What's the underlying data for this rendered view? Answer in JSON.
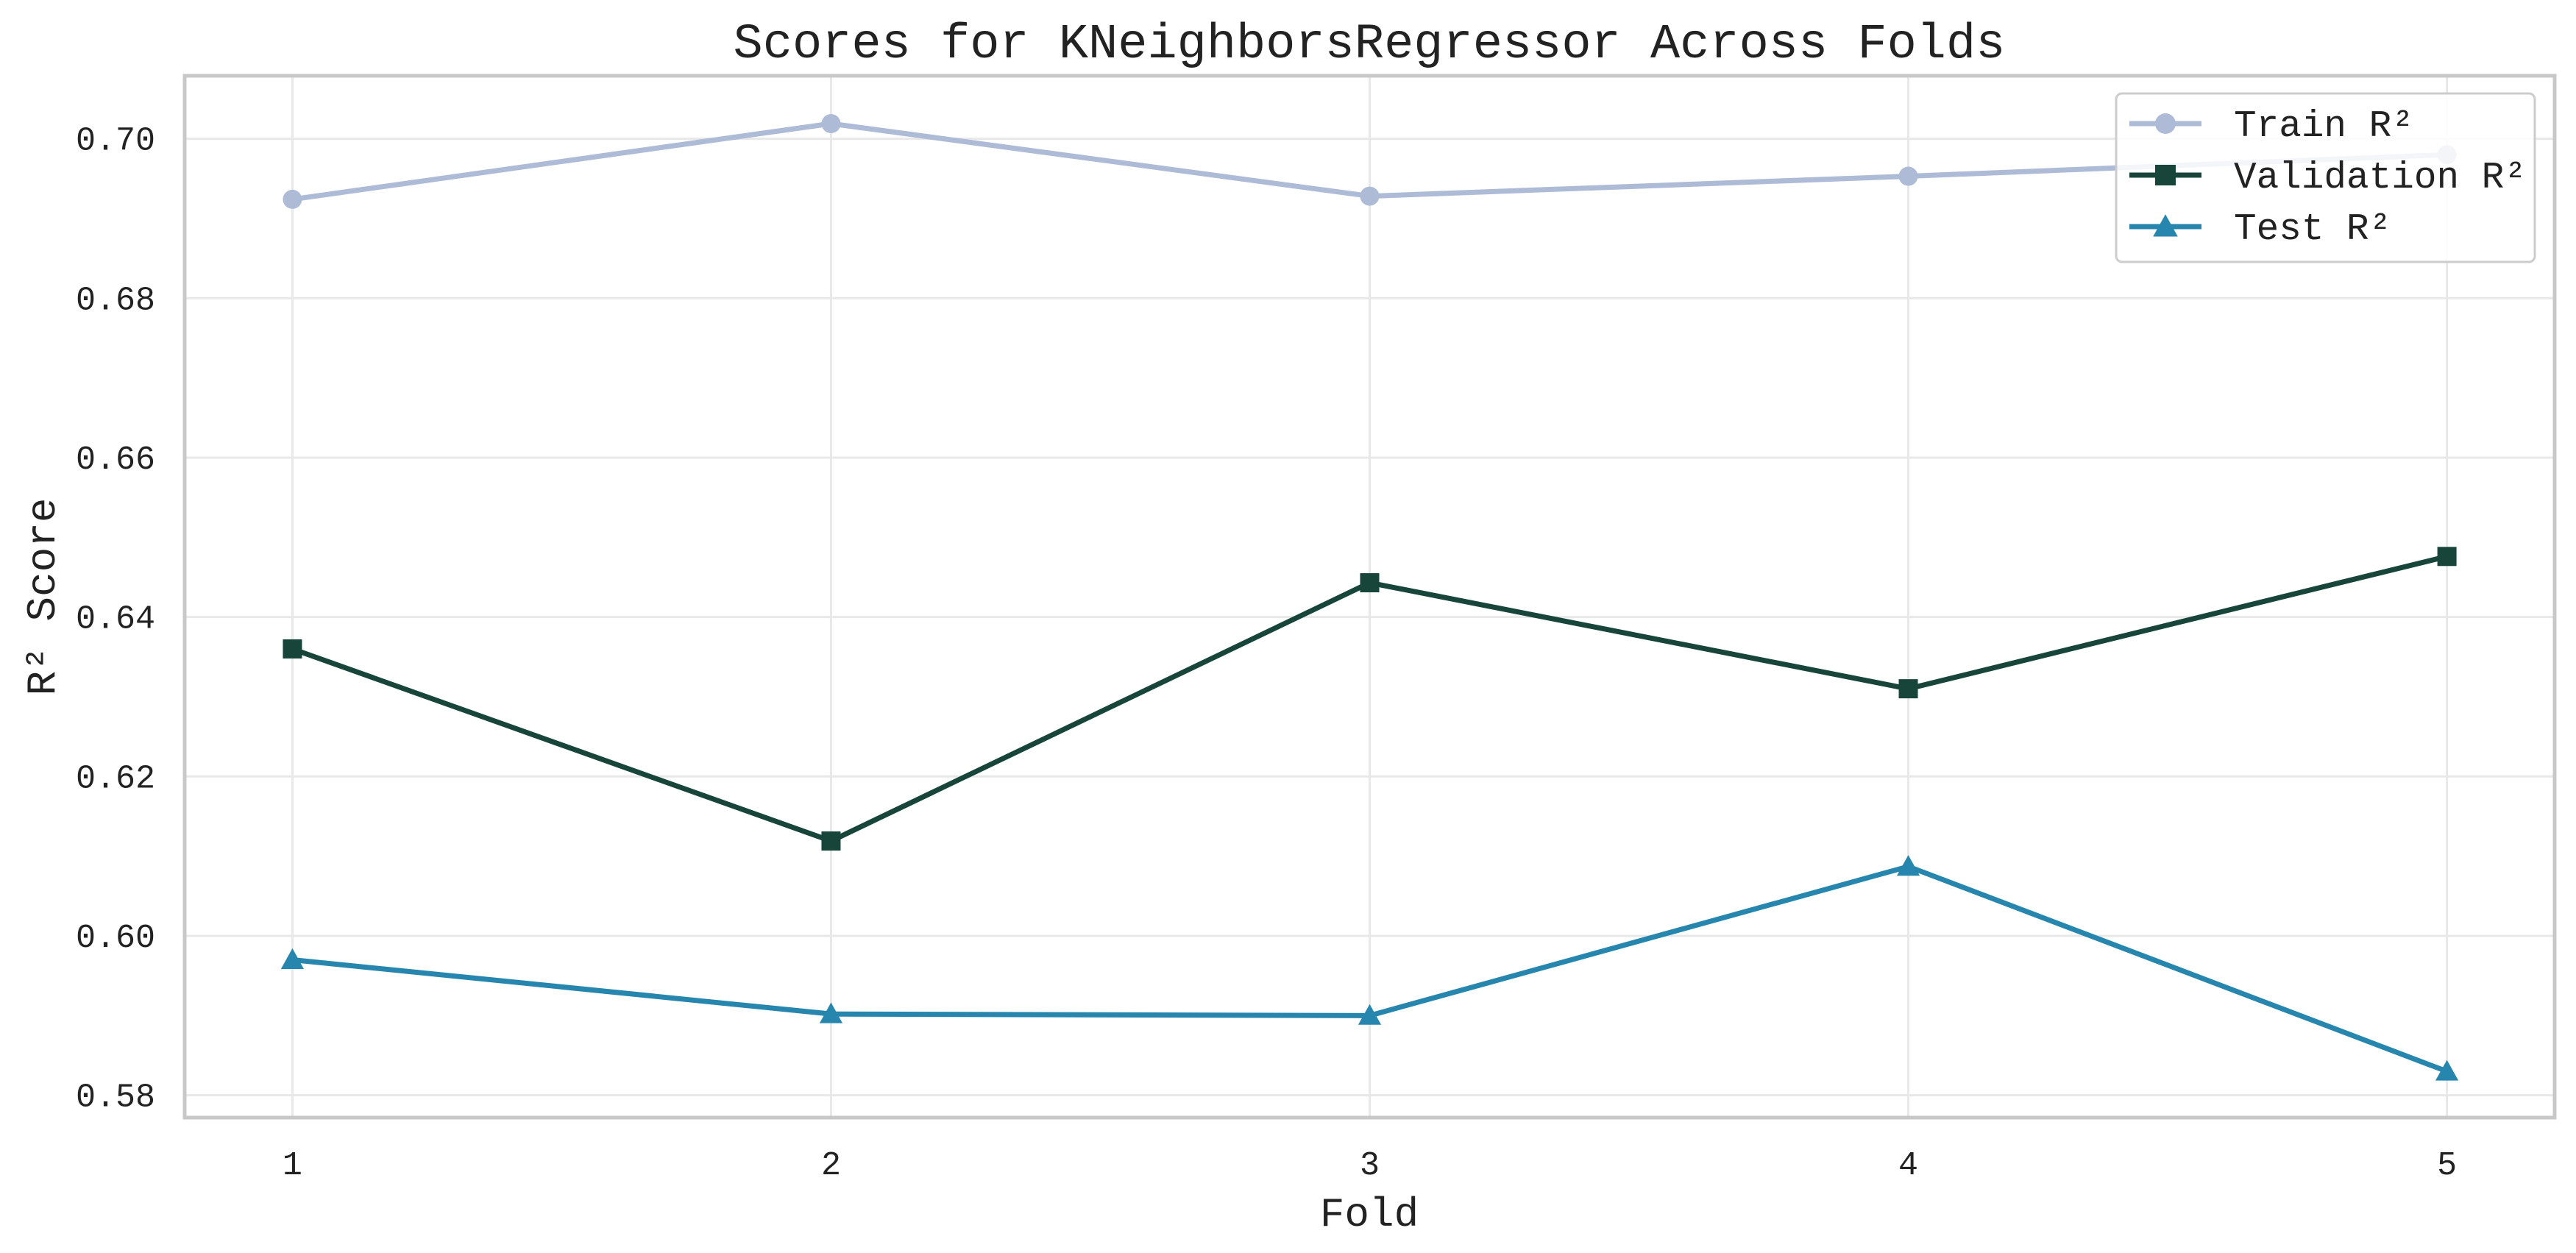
{
  "chart_data": {
    "type": "line",
    "title": "Scores for KNeighborsRegressor Across Folds",
    "xlabel": "Fold",
    "ylabel": "R² Score",
    "x": [
      1,
      2,
      3,
      4,
      5
    ],
    "x_tick_labels": [
      "1",
      "2",
      "3",
      "4",
      "5"
    ],
    "xlim": [
      0.8,
      5.2
    ],
    "ylim": [
      0.5772,
      0.7079
    ],
    "y_ticks": [
      0.58,
      0.6,
      0.62,
      0.64,
      0.66,
      0.68,
      0.7
    ],
    "y_tick_labels": [
      "0.58",
      "0.60",
      "0.62",
      "0.64",
      "0.66",
      "0.68",
      "0.70"
    ],
    "grid": true,
    "legend_position": "top-right",
    "series": [
      {
        "name": "Train R²",
        "marker": "circle",
        "color": "#aebbd7",
        "values": [
          0.6924,
          0.7019,
          0.6928,
          0.6953,
          0.698
        ]
      },
      {
        "name": "Validation R²",
        "marker": "square",
        "color": "#17453a",
        "values": [
          0.636,
          0.6119,
          0.6443,
          0.631,
          0.6476
        ]
      },
      {
        "name": "Test R²",
        "marker": "triangle",
        "color": "#2786ad",
        "values": [
          0.597,
          0.5902,
          0.59,
          0.6087,
          0.583
        ]
      }
    ]
  }
}
